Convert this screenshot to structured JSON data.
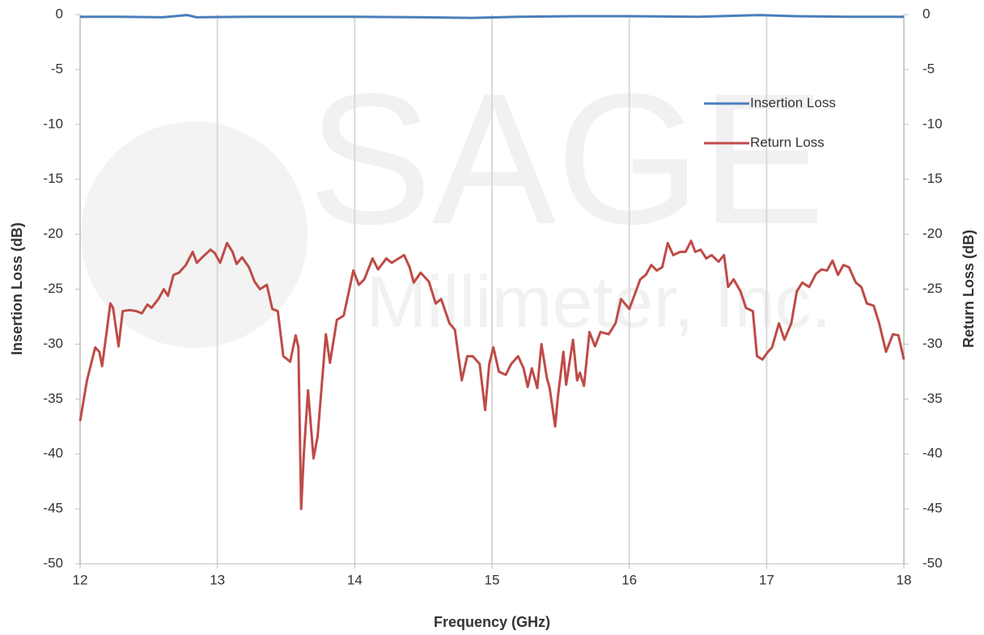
{
  "chart_data": {
    "type": "line",
    "watermark": {
      "logo": "SAGE",
      "company": "Millimeter, Inc."
    },
    "xlabel": "Frequency (GHz)",
    "ylabel": "Insertion Loss (dB)",
    "y2label": "Return Loss (dB)",
    "xlim": [
      12,
      18
    ],
    "xticks": [
      12,
      13,
      14,
      15,
      16,
      17,
      18
    ],
    "ylim": [
      -50,
      0
    ],
    "yticks": [
      -50,
      -45,
      -40,
      -35,
      -30,
      -25,
      -20,
      -15,
      -10,
      -5,
      0
    ],
    "y2lim": [
      -50,
      0
    ],
    "y2ticks": [
      -50,
      -45,
      -40,
      -35,
      -30,
      -25,
      -20,
      -15,
      -10,
      -5,
      0
    ],
    "grid": "x",
    "legend": "upper right",
    "series": [
      {
        "name": "Insertion Loss",
        "color": "#4a7ebb",
        "x": [
          12,
          12.3,
          12.6,
          12.78,
          12.85,
          13.2,
          13.5,
          14,
          14.5,
          14.85,
          15.2,
          15.6,
          16,
          16.5,
          16.95,
          17.2,
          17.6,
          18
        ],
        "values": [
          -0.2,
          -0.2,
          -0.25,
          -0.05,
          -0.25,
          -0.2,
          -0.2,
          -0.2,
          -0.25,
          -0.3,
          -0.2,
          -0.15,
          -0.15,
          -0.2,
          -0.05,
          -0.15,
          -0.2,
          -0.2
        ]
      },
      {
        "name": "Return Loss",
        "color": "#be4b48",
        "axis": "y2",
        "x": [
          12.0,
          12.05,
          12.11,
          12.14,
          12.16,
          12.19,
          12.22,
          12.24,
          12.28,
          12.31,
          12.36,
          12.41,
          12.45,
          12.49,
          12.52,
          12.57,
          12.61,
          12.64,
          12.68,
          12.72,
          12.77,
          12.82,
          12.85,
          12.89,
          12.95,
          12.98,
          13.02,
          13.07,
          13.11,
          13.14,
          13.18,
          13.23,
          13.27,
          13.31,
          13.36,
          13.4,
          13.44,
          13.48,
          13.53,
          13.57,
          13.59,
          13.61,
          13.63,
          13.66,
          13.7,
          13.73,
          13.79,
          13.82,
          13.87,
          13.92,
          13.99,
          14.03,
          14.07,
          14.13,
          14.17,
          14.23,
          14.27,
          14.32,
          14.36,
          14.4,
          14.43,
          14.48,
          14.54,
          14.59,
          14.63,
          14.69,
          14.73,
          14.78,
          14.82,
          14.86,
          14.91,
          14.95,
          14.98,
          15.01,
          15.05,
          15.1,
          15.14,
          15.19,
          15.23,
          15.26,
          15.29,
          15.33,
          15.36,
          15.4,
          15.42,
          15.46,
          15.48,
          15.52,
          15.54,
          15.59,
          15.62,
          15.64,
          15.67,
          15.71,
          15.75,
          15.79,
          15.85,
          15.9,
          15.94,
          16.0,
          16.03,
          16.08,
          16.12,
          16.16,
          16.2,
          16.24,
          16.28,
          16.32,
          16.37,
          16.41,
          16.45,
          16.48,
          16.52,
          16.56,
          16.6,
          16.65,
          16.69,
          16.72,
          16.76,
          16.81,
          16.85,
          16.9,
          16.93,
          16.97,
          17.01,
          17.04,
          17.09,
          17.13,
          17.18,
          17.22,
          17.26,
          17.31,
          17.36,
          17.4,
          17.44,
          17.48,
          17.52,
          17.56,
          17.6,
          17.65,
          17.69,
          17.73,
          17.78,
          17.82,
          17.87,
          17.92,
          17.96,
          18.0
        ],
        "values": [
          -37,
          -33.3,
          -30.3,
          -30.7,
          -32,
          -29.2,
          -26.3,
          -26.7,
          -30.2,
          -27,
          -26.9,
          -27,
          -27.2,
          -26.4,
          -26.7,
          -25.9,
          -25,
          -25.6,
          -23.7,
          -23.5,
          -22.8,
          -21.6,
          -22.6,
          -22.1,
          -21.4,
          -21.7,
          -22.6,
          -20.8,
          -21.6,
          -22.7,
          -22.1,
          -23,
          -24.3,
          -25,
          -24.6,
          -26.8,
          -27,
          -31.1,
          -31.6,
          -29.2,
          -30.3,
          -45,
          -39.9,
          -34.2,
          -40.4,
          -38.4,
          -29.1,
          -31.7,
          -27.8,
          -27.4,
          -23.3,
          -24.6,
          -24.1,
          -22.2,
          -23.2,
          -22.2,
          -22.6,
          -22.2,
          -21.9,
          -23,
          -24.4,
          -23.5,
          -24.3,
          -26.3,
          -25.9,
          -28.1,
          -28.7,
          -33.3,
          -31.1,
          -31.1,
          -31.8,
          -36,
          -31.8,
          -30.3,
          -32.5,
          -32.8,
          -31.8,
          -31.1,
          -32.2,
          -33.9,
          -32.2,
          -34,
          -30,
          -33.1,
          -34,
          -37.5,
          -34.8,
          -30.7,
          -33.7,
          -29.6,
          -33.3,
          -32.6,
          -33.8,
          -28.9,
          -30.2,
          -28.9,
          -29.1,
          -28.1,
          -25.9,
          -26.8,
          -25.8,
          -24.1,
          -23.7,
          -22.8,
          -23.3,
          -23,
          -20.8,
          -21.9,
          -21.6,
          -21.6,
          -20.6,
          -21.6,
          -21.4,
          -22.2,
          -21.9,
          -22.5,
          -21.9,
          -24.8,
          -24.1,
          -25.2,
          -26.7,
          -27,
          -31.1,
          -31.4,
          -30.7,
          -30.3,
          -28.1,
          -29.6,
          -28.1,
          -25.2,
          -24.4,
          -24.8,
          -23.6,
          -23.2,
          -23.3,
          -22.4,
          -23.7,
          -22.8,
          -23,
          -24.4,
          -24.8,
          -26.3,
          -26.5,
          -28.1,
          -30.7,
          -29.1,
          -29.2,
          -31.4
        ]
      }
    ]
  }
}
